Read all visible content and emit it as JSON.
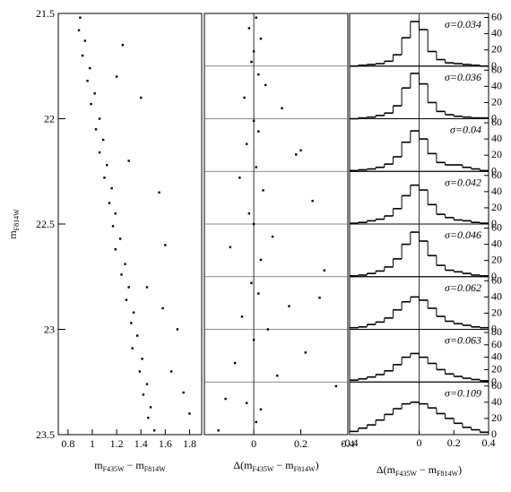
{
  "chart_data": [
    {
      "type": "scatter",
      "xlabel": [
        "m",
        "F435W",
        " − m",
        "F814W"
      ],
      "ylabel": [
        "m",
        "F814W"
      ],
      "xlim": [
        0.72,
        1.9
      ],
      "ylim": [
        21.5,
        23.5
      ],
      "invert_y": true,
      "xticks": [
        0.8,
        1,
        1.2,
        1.4,
        1.6,
        1.8
      ],
      "yticks": [
        21.5,
        22,
        22.5,
        23,
        23.5
      ],
      "color": "#000000",
      "x": [
        0.9,
        0.89,
        0.94,
        0.92,
        0.98,
        0.96,
        1.02,
        0.99,
        1.06,
        1.03,
        1.09,
        1.06,
        1.12,
        1.1,
        1.16,
        1.14,
        1.19,
        1.17,
        1.23,
        1.19,
        1.27,
        1.24,
        1.3,
        1.28,
        1.34,
        1.32,
        1.37,
        1.33,
        1.41,
        1.39,
        1.45,
        1.42,
        1.48,
        1.46,
        1.51,
        1.25,
        1.4,
        1.3,
        1.55,
        1.6,
        1.45,
        1.7,
        1.65,
        1.8,
        1.2,
        1.58,
        1.75
      ],
      "y": [
        21.52,
        21.58,
        21.63,
        21.7,
        21.76,
        21.82,
        21.88,
        21.93,
        22.0,
        22.05,
        22.1,
        22.16,
        22.22,
        22.28,
        22.33,
        22.4,
        22.45,
        22.51,
        22.57,
        22.62,
        22.69,
        22.74,
        22.8,
        22.86,
        22.92,
        22.97,
        23.03,
        23.09,
        23.14,
        23.2,
        23.26,
        23.31,
        23.37,
        23.42,
        23.48,
        21.65,
        21.9,
        22.2,
        22.35,
        22.6,
        22.8,
        23.0,
        23.2,
        23.4,
        21.8,
        22.9,
        23.3
      ]
    },
    {
      "type": "scatter",
      "xlabel": [
        "Δ(m",
        "F435W",
        " − m",
        "F814W",
        ")"
      ],
      "xlim": [
        -0.21,
        0.4
      ],
      "ylim": [
        21.5,
        23.5
      ],
      "invert_y": true,
      "zero_line": true,
      "xticks": [
        0,
        0.2,
        0.4
      ],
      "bin_edges": [
        21.75,
        22,
        22.25,
        22.5,
        22.75,
        23,
        23.25
      ],
      "color": "#000000",
      "x": [
        0.01,
        -0.02,
        0.03,
        0.0,
        -0.01,
        0.02,
        0.05,
        -0.04,
        0.12,
        0.0,
        0.02,
        -0.03,
        0.18,
        0.01,
        -0.06,
        0.04,
        0.25,
        -0.02,
        0.0,
        0.08,
        -0.1,
        0.03,
        0.3,
        -0.01,
        0.02,
        0.15,
        -0.05,
        0.06,
        0.0,
        0.22,
        -0.08,
        0.1,
        0.35,
        -0.12,
        0.03,
        0.01,
        -0.15,
        0.2,
        0.28,
        -0.03
      ],
      "y": [
        21.52,
        21.57,
        21.62,
        21.68,
        21.73,
        21.79,
        21.84,
        21.9,
        21.95,
        22.01,
        22.06,
        22.12,
        22.17,
        22.23,
        22.28,
        22.34,
        22.39,
        22.45,
        22.5,
        22.56,
        22.61,
        22.67,
        22.72,
        22.78,
        22.83,
        22.89,
        22.94,
        23.0,
        23.05,
        23.11,
        23.16,
        23.22,
        23.27,
        23.33,
        23.38,
        23.44,
        23.48,
        22.15,
        22.85,
        23.35
      ]
    },
    {
      "type": "histograms",
      "xlabel": [
        "Δ(m",
        "F435W",
        " − m",
        "F814W",
        ")"
      ],
      "xlim": [
        -0.4,
        0.4
      ],
      "xticks": [
        -0.4,
        0,
        0.2,
        0.4
      ],
      "zero_line": true,
      "bins": [
        -0.4,
        -0.35,
        -0.3,
        -0.25,
        -0.2,
        -0.15,
        -0.1,
        -0.05,
        0,
        0.05,
        0.1,
        0.15,
        0.2,
        0.25,
        0.3,
        0.35,
        0.4
      ],
      "panels": [
        {
          "label": "σ=0.034",
          "ylim": [
            0,
            65
          ],
          "yticks": [
            0,
            20,
            40,
            60
          ],
          "counts": [
            0,
            1,
            2,
            3,
            6,
            14,
            35,
            55,
            45,
            18,
            8,
            4,
            3,
            2,
            1,
            0
          ]
        },
        {
          "label": "σ=0.036",
          "ylim": [
            0,
            65
          ],
          "yticks": [
            0,
            20,
            40,
            60
          ],
          "counts": [
            0,
            1,
            2,
            4,
            7,
            16,
            38,
            56,
            43,
            20,
            9,
            5,
            3,
            2,
            1,
            1
          ]
        },
        {
          "label": "σ=0.04",
          "ylim": [
            0,
            65
          ],
          "yticks": [
            0,
            20,
            40,
            60
          ],
          "counts": [
            1,
            2,
            3,
            5,
            9,
            18,
            36,
            50,
            40,
            22,
            11,
            8,
            8,
            5,
            3,
            1
          ]
        },
        {
          "label": "σ=0.042",
          "ylim": [
            0,
            65
          ],
          "yticks": [
            0,
            20,
            40,
            60
          ],
          "counts": [
            1,
            2,
            4,
            6,
            10,
            19,
            35,
            48,
            42,
            24,
            12,
            8,
            5,
            4,
            2,
            1
          ]
        },
        {
          "label": "σ=0.046",
          "ylim": [
            0,
            65
          ],
          "yticks": [
            0,
            20,
            40,
            60
          ],
          "counts": [
            1,
            2,
            4,
            7,
            12,
            22,
            40,
            55,
            44,
            26,
            14,
            8,
            6,
            4,
            2,
            1
          ]
        },
        {
          "label": "σ=0.062",
          "ylim": [
            0,
            65
          ],
          "yticks": [
            0,
            20,
            40,
            60
          ],
          "counts": [
            2,
            3,
            6,
            9,
            14,
            24,
            34,
            40,
            36,
            26,
            16,
            10,
            7,
            5,
            3,
            2
          ]
        },
        {
          "label": "σ=0.063",
          "ylim": [
            0,
            85
          ],
          "yticks": [
            0,
            20,
            40,
            60,
            80
          ],
          "counts": [
            3,
            5,
            8,
            12,
            18,
            28,
            40,
            46,
            40,
            30,
            20,
            13,
            9,
            6,
            4,
            2
          ]
        },
        {
          "label": "σ=0.109",
          "ylim": [
            0,
            65
          ],
          "yticks": [
            0,
            20,
            40,
            60
          ],
          "counts": [
            4,
            8,
            12,
            18,
            25,
            32,
            38,
            40,
            38,
            33,
            26,
            20,
            14,
            9,
            6,
            3
          ]
        }
      ]
    }
  ]
}
